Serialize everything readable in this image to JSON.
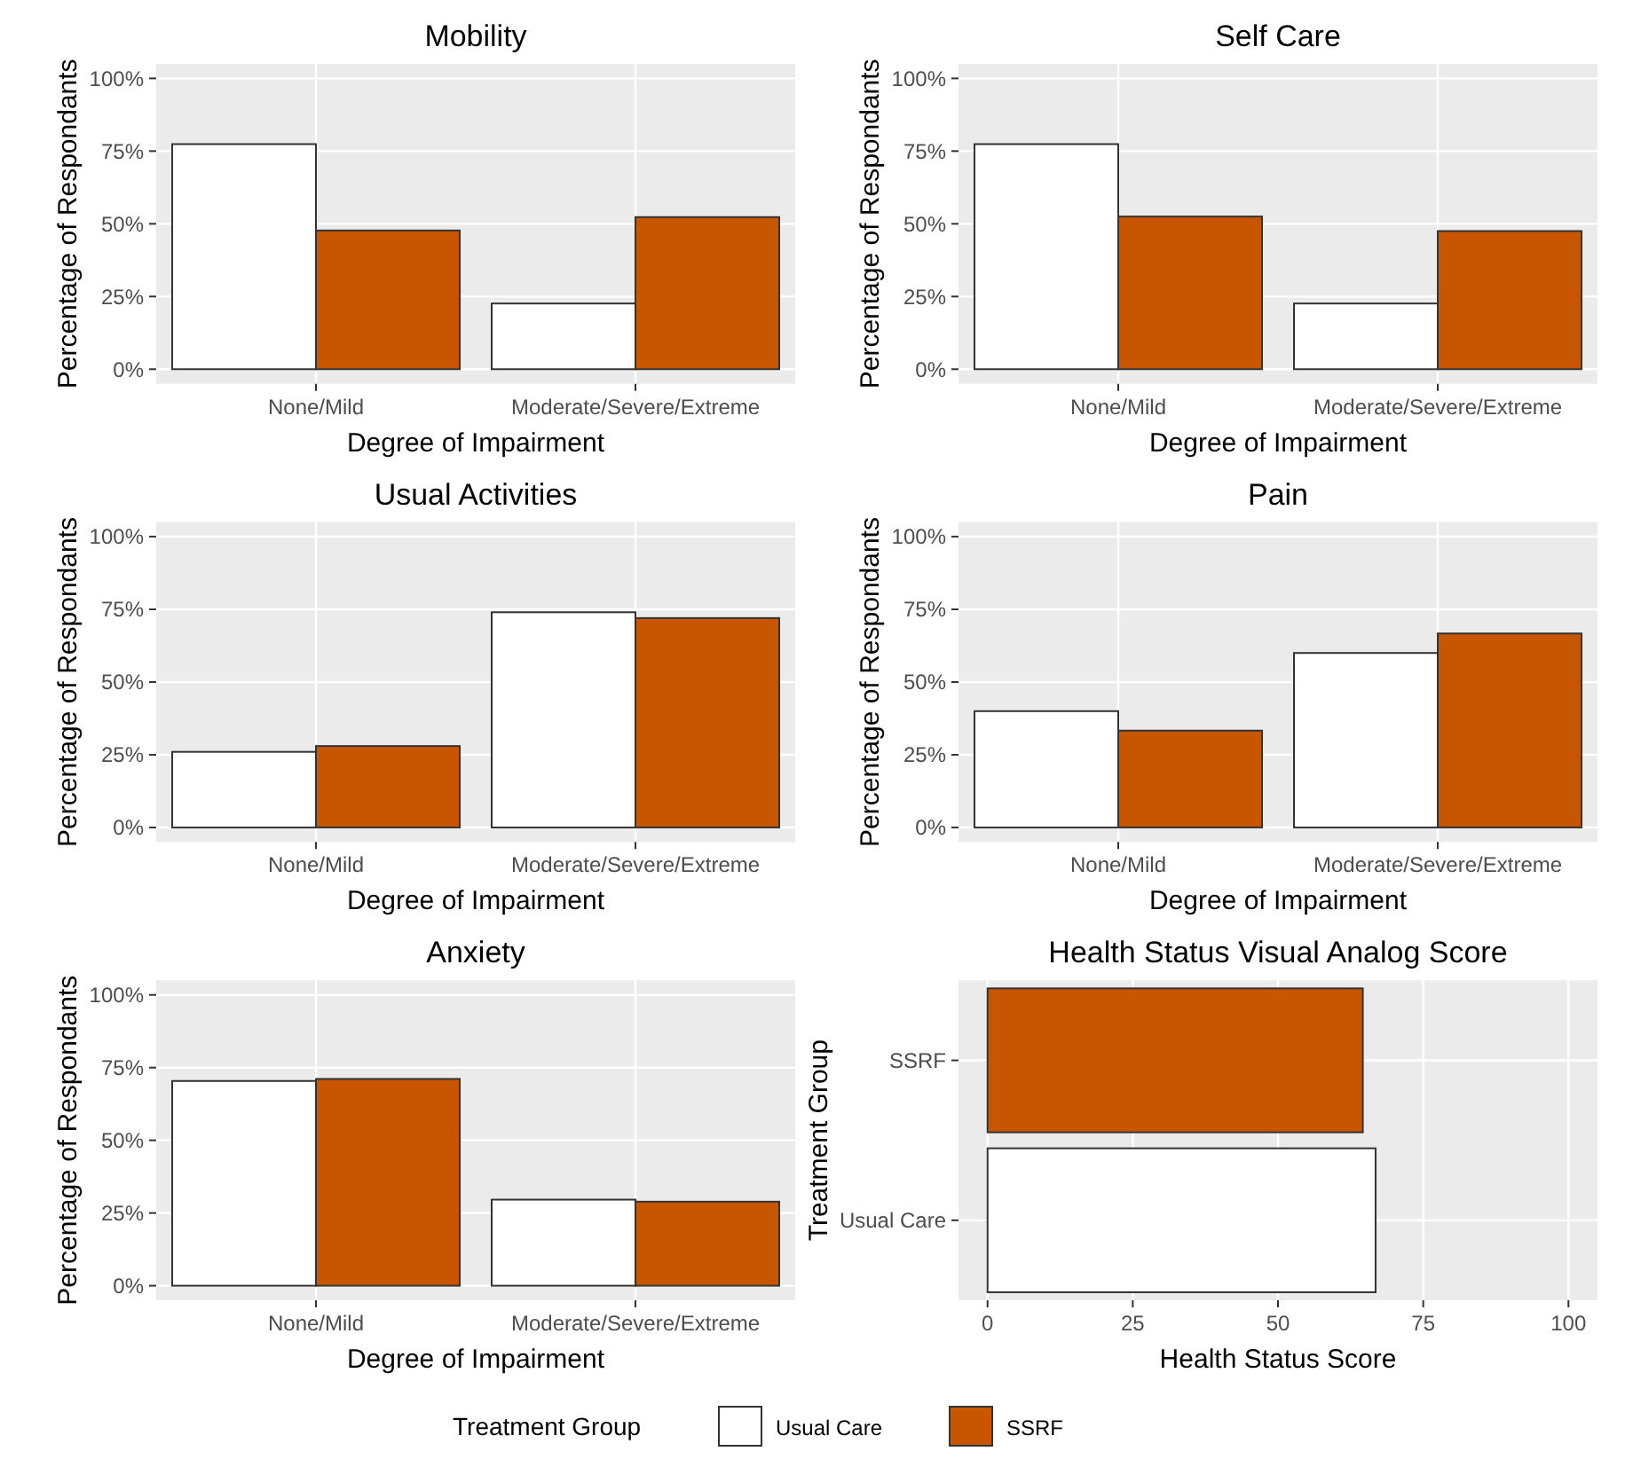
{
  "chart_data": [
    {
      "type": "bar",
      "title": "Mobility",
      "xlabel": "Degree of Impairment",
      "ylabel": "Percentage of Respondants",
      "categories": [
        "None/Mild",
        "Moderate/Severe/Extreme"
      ],
      "ylim": [
        -5,
        105
      ],
      "yticks": [
        {
          "value": 0,
          "label": "0%"
        },
        {
          "value": 25,
          "label": "25%"
        },
        {
          "value": 50,
          "label": "50%"
        },
        {
          "value": 75,
          "label": "75%"
        },
        {
          "value": 100,
          "label": "100%"
        }
      ],
      "grid": true,
      "legend": "bottom",
      "legend_title": "Treatment Group",
      "series": [
        {
          "name": "Usual Care",
          "color": "#ffffff",
          "values": [
            77.4,
            22.6
          ]
        },
        {
          "name": "SSRF",
          "color": "#c85600",
          "values": [
            47.7,
            52.3
          ]
        }
      ]
    },
    {
      "type": "bar",
      "title": "Self Care",
      "xlabel": "Degree of Impairment",
      "ylabel": "Percentage of Respondants",
      "categories": [
        "None/Mild",
        "Moderate/Severe/Extreme"
      ],
      "ylim": [
        -5,
        105
      ],
      "yticks": [
        {
          "value": 0,
          "label": "0%"
        },
        {
          "value": 25,
          "label": "25%"
        },
        {
          "value": 50,
          "label": "50%"
        },
        {
          "value": 75,
          "label": "75%"
        },
        {
          "value": 100,
          "label": "100%"
        }
      ],
      "grid": true,
      "series": [
        {
          "color": "#ffffff",
          "values": [
            77.4,
            22.6
          ]
        },
        {
          "color": "#c85600",
          "values": [
            52.5,
            47.5
          ]
        }
      ]
    },
    {
      "type": "bar",
      "title": "Usual Activities",
      "xlabel": "Degree of Impairment",
      "ylabel": "Percentage of Respondants",
      "categories": [
        "None/Mild",
        "Moderate/Severe/Extreme"
      ],
      "ylim": [
        -5,
        105
      ],
      "yticks": [
        {
          "value": 0,
          "label": "0%"
        },
        {
          "value": 25,
          "label": "25%"
        },
        {
          "value": 50,
          "label": "50%"
        },
        {
          "value": 75,
          "label": "75%"
        },
        {
          "value": 100,
          "label": "100%"
        }
      ],
      "grid": true,
      "series": [
        {
          "color": "#ffffff",
          "values": [
            26,
            74
          ]
        },
        {
          "color": "#c85600",
          "values": [
            28,
            72
          ]
        }
      ]
    },
    {
      "type": "bar",
      "title": "Pain",
      "xlabel": "Degree of Impairment",
      "ylabel": "Percentage of Respondants",
      "categories": [
        "None/Mild",
        "Moderate/Severe/Extreme"
      ],
      "ylim": [
        -5,
        105
      ],
      "yticks": [
        {
          "value": 0,
          "label": "0%"
        },
        {
          "value": 25,
          "label": "25%"
        },
        {
          "value": 50,
          "label": "50%"
        },
        {
          "value": 75,
          "label": "75%"
        },
        {
          "value": 100,
          "label": "100%"
        }
      ],
      "grid": true,
      "series": [
        {
          "color": "#ffffff",
          "values": [
            40,
            60
          ]
        },
        {
          "color": "#c85600",
          "values": [
            33.3,
            66.7
          ]
        }
      ]
    },
    {
      "type": "bar",
      "title": "Anxiety",
      "xlabel": "Degree of Impairment",
      "ylabel": "Percentage of Respondants",
      "categories": [
        "None/Mild",
        "Moderate/Severe/Extreme"
      ],
      "ylim": [
        -5,
        105
      ],
      "yticks": [
        {
          "value": 0,
          "label": "0%"
        },
        {
          "value": 25,
          "label": "25%"
        },
        {
          "value": 50,
          "label": "50%"
        },
        {
          "value": 75,
          "label": "75%"
        },
        {
          "value": 100,
          "label": "100%"
        }
      ],
      "grid": true,
      "series": [
        {
          "color": "#ffffff",
          "values": [
            70.4,
            29.6
          ]
        },
        {
          "color": "#c85600",
          "values": [
            71.1,
            28.9
          ]
        }
      ]
    },
    {
      "type": "bar",
      "orientation": "horizontal",
      "title": "Health Status Visual Analog Score",
      "xlabel": "Health Status Score",
      "ylabel": "Treatment Group",
      "categories": [
        "SSRF",
        "Usual Care"
      ],
      "values": [
        64.6,
        66.8
      ],
      "colors": [
        "#c85600",
        "#ffffff"
      ],
      "xlim": [
        -5,
        105
      ],
      "xticks": [
        0,
        25,
        50,
        75,
        100
      ],
      "grid": true
    }
  ]
}
